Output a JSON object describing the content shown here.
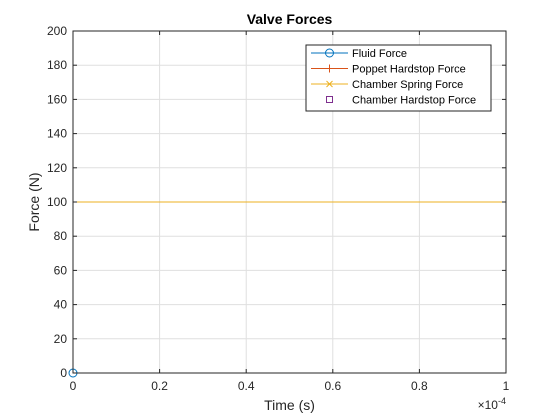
{
  "chart_data": {
    "type": "line",
    "title": "Valve Forces",
    "xlabel": "Time (s)",
    "ylabel": "Force (N)",
    "x_exponent_label": "×10",
    "x_exponent_power": "-4",
    "xlim": [
      0,
      1
    ],
    "ylim": [
      0,
      200
    ],
    "x_ticks": [
      0,
      0.2,
      0.4,
      0.6,
      0.8,
      1
    ],
    "x_tick_labels": [
      "0",
      "0.2",
      "0.4",
      "0.6",
      "0.8",
      "1"
    ],
    "y_ticks": [
      0,
      20,
      40,
      60,
      80,
      100,
      120,
      140,
      160,
      180,
      200
    ],
    "y_tick_labels": [
      "0",
      "20",
      "40",
      "60",
      "80",
      "100",
      "120",
      "140",
      "160",
      "180",
      "200"
    ],
    "grid": true,
    "legend_position": "top-right",
    "series": [
      {
        "name": "Fluid Force",
        "color": "#0072BD",
        "marker": "circle",
        "x": [
          0
        ],
        "y": [
          0
        ]
      },
      {
        "name": "Poppet Hardstop Force",
        "color": "#D95319",
        "marker": "plus",
        "x": [],
        "y": []
      },
      {
        "name": "Chamber Spring Force",
        "color": "#EDB120",
        "marker": "x",
        "x": [
          0,
          1
        ],
        "y": [
          100,
          100
        ]
      },
      {
        "name": "Chamber Hardstop Force",
        "color": "#7E2F8E",
        "marker": "square",
        "x": [],
        "y": []
      }
    ]
  }
}
